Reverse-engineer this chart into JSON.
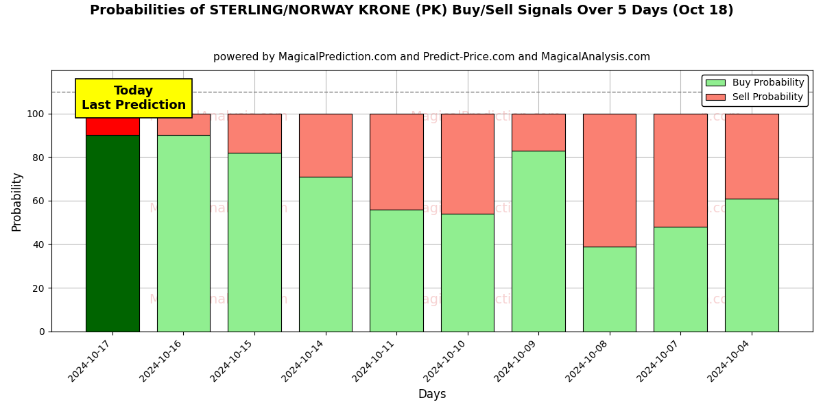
{
  "title": "Probabilities of STERLING/NORWAY KRONE (PK) Buy/Sell Signals Over 5 Days (Oct 18)",
  "subtitle": "powered by MagicalPrediction.com and Predict-Price.com and MagicalAnalysis.com",
  "xlabel": "Days",
  "ylabel": "Probability",
  "categories": [
    "2024-10-17",
    "2024-10-16",
    "2024-10-15",
    "2024-10-14",
    "2024-10-11",
    "2024-10-10",
    "2024-10-09",
    "2024-10-08",
    "2024-10-07",
    "2024-10-04"
  ],
  "buy_values": [
    90,
    90,
    82,
    71,
    56,
    54,
    83,
    39,
    48,
    61
  ],
  "sell_values": [
    10,
    10,
    18,
    29,
    44,
    46,
    17,
    61,
    52,
    39
  ],
  "buy_colors": [
    "#006400",
    "#90EE90",
    "#90EE90",
    "#90EE90",
    "#90EE90",
    "#90EE90",
    "#90EE90",
    "#90EE90",
    "#90EE90",
    "#90EE90"
  ],
  "sell_colors": [
    "#FF0000",
    "#FA8072",
    "#FA8072",
    "#FA8072",
    "#FA8072",
    "#FA8072",
    "#FA8072",
    "#FA8072",
    "#FA8072",
    "#FA8072"
  ],
  "bar_edge_color": "black",
  "bar_edge_width": 0.8,
  "ylim": [
    0,
    120
  ],
  "yticks": [
    0,
    20,
    40,
    60,
    80,
    100
  ],
  "dashed_line_y": 110,
  "legend_buy_color": "#90EE90",
  "legend_sell_color": "#FA8072",
  "legend_buy_label": "Buy Probability",
  "legend_sell_label": "Sell Probability",
  "annotation_text": "Today\nLast Prediction",
  "annotation_bg_color": "yellow",
  "bg_color": "white",
  "grid_color": "#bbbbbb",
  "title_fontsize": 14,
  "subtitle_fontsize": 11,
  "bar_width": 0.75,
  "watermark_color": "#e88080",
  "watermark_alpha": 0.35
}
